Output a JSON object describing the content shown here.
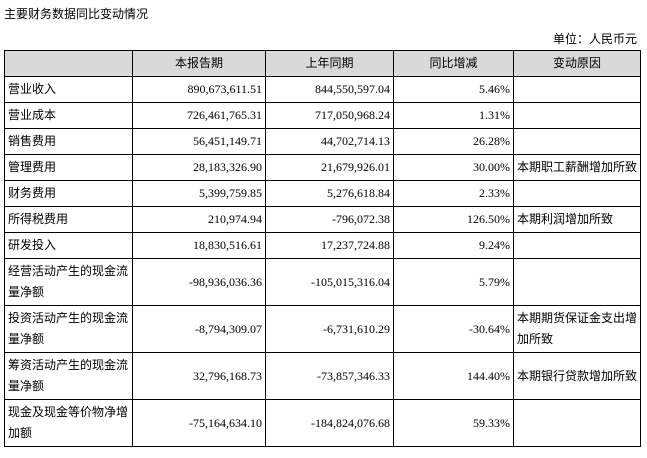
{
  "title": "主要财务数据同比变动情况",
  "unit": "单位：人民币元",
  "table": {
    "header": [
      "",
      "本报告期",
      "上年同期",
      "同比增减",
      "变动原因"
    ],
    "rows": [
      [
        "营业收入",
        "890,673,611.51",
        "844,550,597.04",
        "5.46%"
      ],
      [
        "营业成本",
        "726,461,765.31",
        "717,050,968.24",
        "1.31%"
      ],
      [
        "销售费用",
        "56,451,149.71",
        "44,702,714.13",
        "26.28%"
      ],
      [
        "管理费用",
        "28,183,326.90",
        "21,679,926.01",
        "30.00%",
        "本期职工薪酬增加所致"
      ],
      [
        "财务费用",
        "5,399,759.85",
        "5,276,618.84",
        "2.33%"
      ],
      [
        "所得税费用",
        "210,974.94",
        "-796,072.38",
        "126.50%",
        "本期利润增加所致"
      ],
      [
        "研发投入",
        "18,830,516.61",
        "17,237,724.88",
        "9.24%"
      ],
      [
        "经营活动产生的现金流量净额",
        "-98,936,036.36",
        "-105,015,316.04",
        "5.79%"
      ],
      [
        "投资活动产生的现金流量净额",
        "-8,794,309.07",
        "-6,731,610.29",
        "-30.64%",
        "本期期货保证金支出增加所致"
      ],
      [
        "筹资活动产生的现金流量净额",
        "32,796,168.73",
        "-73,857,346.33",
        "144.40%",
        "本期银行贷款增加所致"
      ],
      [
        "现金及现金等价物净增加额",
        "-75,164,634.10",
        "-184,824,076.68",
        "59.33%"
      ]
    ]
  }
}
